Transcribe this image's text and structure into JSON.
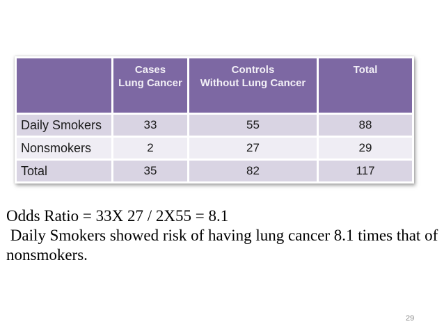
{
  "slide": {
    "page_number": "29"
  },
  "table": {
    "header": {
      "corner": "",
      "cases": "Cases\nLung Cancer",
      "controls": "Controls\nWithout Lung Cancer",
      "total": "Total"
    },
    "rows": [
      {
        "label": "Daily Smokers",
        "cases": "33",
        "controls": "55",
        "total": "88"
      },
      {
        "label": "Nonsmokers",
        "cases": "2",
        "controls": "27",
        "total": "29"
      },
      {
        "label": "Total",
        "cases": "35",
        "controls": "82",
        "total": "117"
      }
    ]
  },
  "notes": {
    "line1": "Odds Ratio = 33X 27 / 2X55 = 8.1",
    "line2": " Daily Smokers showed risk of having lung cancer 8.1 times that of",
    "line3": "nonsmokers."
  },
  "colors": {
    "header_bg": "#7D68A3",
    "header_text": "#F2EFF6",
    "band_dark": "#D9D4E3",
    "band_light": "#EFEDF4",
    "page_number_text": "#8C8C8C"
  }
}
